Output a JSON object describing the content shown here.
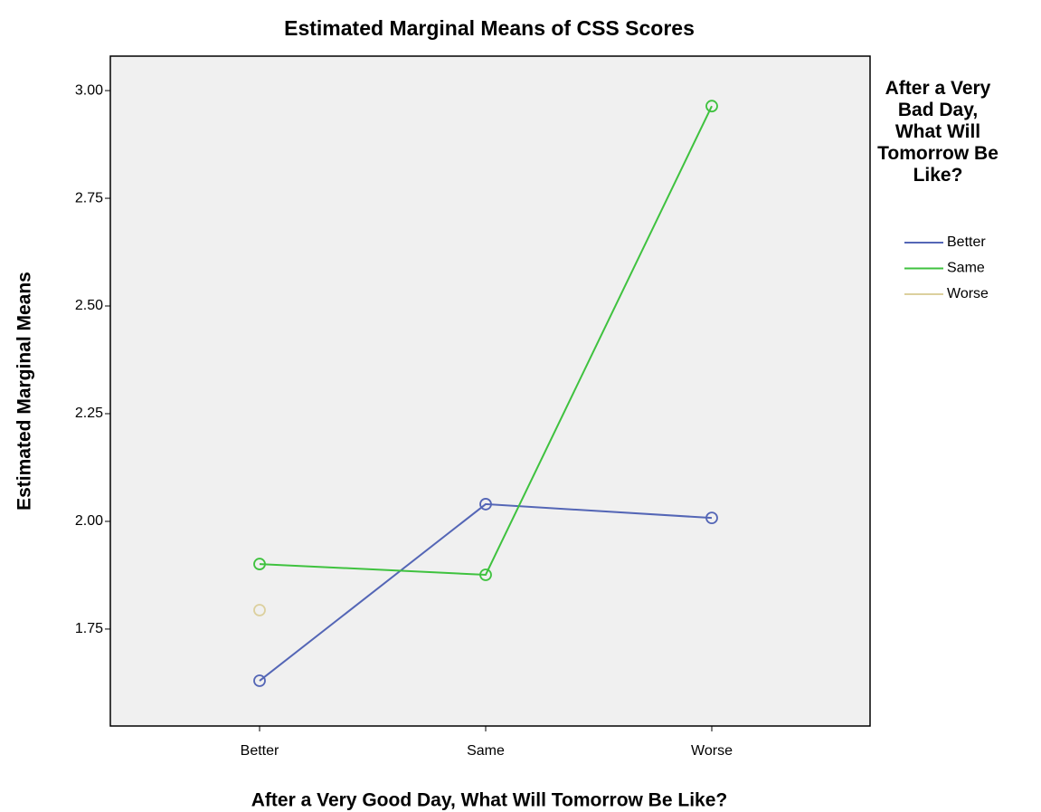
{
  "chart_data": {
    "type": "line",
    "title": "Estimated Marginal Means of CSS Scores",
    "xlabel": "After a Very Good Day, What Will Tomorrow Be Like?",
    "ylabel": "Estimated Marginal Means",
    "legend_title": "After a Very Bad Day, What Will Tomorrow Be Like?",
    "categories": [
      "Better",
      "Same",
      "Worse"
    ],
    "series": [
      {
        "name": "Better",
        "color": "#5466b6",
        "values": [
          1.63,
          2.04,
          2.008
        ]
      },
      {
        "name": "Same",
        "color": "#3fc23f",
        "values": [
          1.901,
          1.876,
          2.964
        ]
      },
      {
        "name": "Worse",
        "color": "#dcd09e",
        "values": [
          1.794,
          null,
          null
        ]
      }
    ],
    "ylim": [
      1.525,
      3.08
    ],
    "yticks": [
      1.75,
      {
        "value": 2.0,
        "label": "2.00"
      },
      2.25,
      {
        "value": 2.5,
        "label": "2.50"
      },
      2.75,
      {
        "value": 3.0,
        "label": "3.00"
      }
    ],
    "legend": "right",
    "background": "#f0f0f0"
  }
}
